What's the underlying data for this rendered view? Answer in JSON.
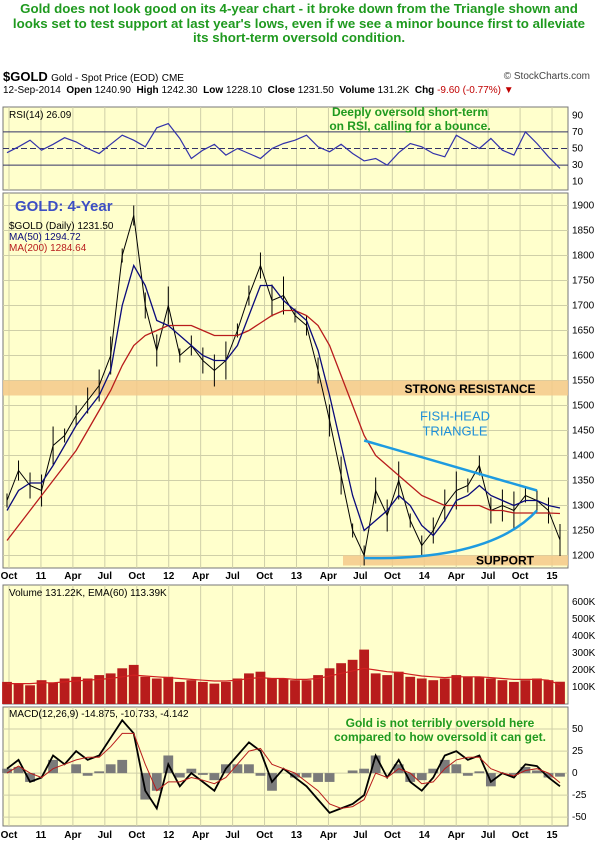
{
  "headline": "Gold does not look good on its 4-year chart - it broke down from the Triangle shown and looks set to test support at last year's lows, even if we see a minor bounce first to alleviate its short-term oversold condition.",
  "header": {
    "symbol": "$GOLD",
    "name": "Gold - Spot Price (EOD)",
    "exchange": "CME",
    "credit": "© StockCharts.com",
    "date": "12-Sep-2014",
    "open_label": "Open",
    "open": "1240.90",
    "high_label": "High",
    "high": "1242.30",
    "low_label": "Low",
    "low": "1228.10",
    "close_label": "Close",
    "close": "1231.50",
    "volume_label": "Volume",
    "volume": "131.2K",
    "chg_label": "Chg",
    "chg": "-9.60 (-0.77%)"
  },
  "colors": {
    "panel_bg": "#ffffcc",
    "grid": "#cfcfa8",
    "rsi_line": "#3333aa",
    "ma50": "#0a0a7a",
    "ma200": "#b81c1c",
    "price_bars": "#000000",
    "zone": "#f5c98a",
    "triangle": "#1e9be0",
    "headline": "#1f9a1f",
    "volume_bars": "#b81c1c",
    "macd_hist": "#7a7a7a"
  },
  "chart_data": [
    {
      "type": "line",
      "panel": "rsi",
      "legend": "RSI(14) 26.09",
      "yticks": [
        10,
        30,
        50,
        70,
        90
      ],
      "ylim": [
        0,
        100
      ],
      "reference_lines": [
        30,
        50,
        70
      ],
      "x": [
        0,
        1,
        2,
        3,
        4,
        5,
        6,
        7,
        8,
        9,
        10,
        11,
        12,
        13,
        14,
        15,
        16,
        17,
        18,
        19,
        20,
        21,
        22,
        23,
        24,
        25,
        26,
        27,
        28,
        29,
        30,
        31,
        32,
        33,
        34,
        35,
        36,
        37,
        38,
        39,
        40,
        41,
        42,
        43,
        44,
        45,
        46,
        47,
        48
      ],
      "values": [
        45,
        52,
        60,
        48,
        55,
        63,
        58,
        50,
        44,
        55,
        66,
        60,
        52,
        75,
        80,
        62,
        38,
        48,
        55,
        42,
        50,
        44,
        38,
        50,
        56,
        60,
        66,
        52,
        46,
        55,
        44,
        35,
        38,
        30,
        45,
        56,
        52,
        44,
        40,
        66,
        58,
        50,
        62,
        48,
        42,
        70,
        56,
        40,
        26
      ]
    },
    {
      "type": "line",
      "panel": "price",
      "title": "GOLD: 4-Year",
      "legend": [
        "$GOLD (Daily) 1231.50",
        "MA(50) 1294.72",
        "MA(200) 1284.64"
      ],
      "yticks": [
        1200,
        1250,
        1300,
        1350,
        1400,
        1450,
        1500,
        1550,
        1600,
        1650,
        1700,
        1750,
        1800,
        1850,
        1900
      ],
      "ylim": [
        1175,
        1925
      ],
      "x_ticks": [
        "Oct",
        "11",
        "Apr",
        "Jul",
        "Oct",
        "12",
        "Apr",
        "Jul",
        "Oct",
        "13",
        "Apr",
        "Jul",
        "Oct",
        "14",
        "Apr",
        "Jul",
        "Oct",
        "15"
      ],
      "x": [
        0,
        1,
        2,
        3,
        4,
        5,
        6,
        7,
        8,
        9,
        10,
        11,
        12,
        13,
        14,
        15,
        16,
        17,
        18,
        19,
        20,
        21,
        22,
        23,
        24,
        25,
        26,
        27,
        28,
        29,
        30,
        31,
        32,
        33,
        34,
        35,
        36,
        37,
        38,
        39,
        40,
        41,
        42,
        43,
        44,
        45,
        46,
        47,
        48
      ],
      "series": [
        {
          "name": "$GOLD",
          "values": [
            1310,
            1370,
            1340,
            1330,
            1420,
            1440,
            1480,
            1510,
            1540,
            1600,
            1800,
            1880,
            1700,
            1610,
            1700,
            1600,
            1620,
            1590,
            1570,
            1590,
            1650,
            1720,
            1780,
            1710,
            1720,
            1680,
            1660,
            1570,
            1470,
            1360,
            1250,
            1200,
            1330,
            1280,
            1350,
            1270,
            1220,
            1250,
            1300,
            1330,
            1340,
            1380,
            1290,
            1300,
            1290,
            1320,
            1310,
            1290,
            1231
          ]
        },
        {
          "name": "MA(50)",
          "values": [
            1290,
            1330,
            1345,
            1345,
            1380,
            1420,
            1460,
            1490,
            1520,
            1570,
            1700,
            1780,
            1740,
            1670,
            1660,
            1640,
            1620,
            1600,
            1590,
            1590,
            1620,
            1680,
            1740,
            1740,
            1710,
            1690,
            1670,
            1610,
            1520,
            1420,
            1320,
            1250,
            1270,
            1290,
            1320,
            1300,
            1260,
            1240,
            1270,
            1310,
            1320,
            1340,
            1320,
            1310,
            1300,
            1310,
            1310,
            1300,
            1295
          ]
        },
        {
          "name": "MA(200)",
          "values": [
            1230,
            1260,
            1290,
            1320,
            1350,
            1380,
            1410,
            1450,
            1490,
            1530,
            1580,
            1620,
            1640,
            1650,
            1660,
            1660,
            1660,
            1650,
            1640,
            1640,
            1640,
            1650,
            1665,
            1680,
            1690,
            1690,
            1680,
            1660,
            1620,
            1560,
            1500,
            1440,
            1400,
            1380,
            1360,
            1340,
            1320,
            1310,
            1300,
            1300,
            1300,
            1300,
            1290,
            1290,
            1285,
            1285,
            1285,
            1285,
            1284
          ]
        }
      ],
      "annotations": [
        "STRONG RESISTANCE",
        "FISH-HEAD",
        "TRIANGLE",
        "SUPPORT"
      ],
      "resistance_zone": [
        1520,
        1550
      ],
      "support_zone": [
        1180,
        1200
      ]
    },
    {
      "type": "bar",
      "panel": "volume",
      "legend": "Volume 131.22K, EMA(60) 113.39K",
      "yticks": [
        "100K",
        "200K",
        "300K",
        "400K",
        "500K",
        "600K"
      ],
      "ylim": [
        0,
        700
      ],
      "x": [
        0,
        1,
        2,
        3,
        4,
        5,
        6,
        7,
        8,
        9,
        10,
        11,
        12,
        13,
        14,
        15,
        16,
        17,
        18,
        19,
        20,
        21,
        22,
        23,
        24,
        25,
        26,
        27,
        28,
        29,
        30,
        31,
        32,
        33,
        34,
        35,
        36,
        37,
        38,
        39,
        40,
        41,
        42,
        43,
        44,
        45,
        46,
        47,
        48
      ],
      "values": [
        130,
        120,
        110,
        140,
        125,
        150,
        160,
        150,
        170,
        180,
        210,
        230,
        160,
        150,
        160,
        130,
        140,
        130,
        120,
        130,
        150,
        180,
        190,
        150,
        150,
        140,
        140,
        170,
        210,
        240,
        260,
        320,
        180,
        170,
        190,
        160,
        150,
        140,
        150,
        170,
        160,
        160,
        150,
        140,
        130,
        140,
        150,
        140,
        131
      ],
      "ema_values": [
        120,
        120,
        120,
        125,
        125,
        130,
        135,
        140,
        145,
        150,
        160,
        170,
        165,
        160,
        155,
        150,
        145,
        140,
        135,
        135,
        140,
        150,
        155,
        150,
        150,
        145,
        145,
        150,
        165,
        180,
        195,
        210,
        200,
        190,
        185,
        175,
        165,
        160,
        155,
        160,
        160,
        160,
        155,
        150,
        145,
        145,
        145,
        140,
        113
      ]
    },
    {
      "type": "line",
      "panel": "macd",
      "legend": "MACD(12,26,9) -14.875, -10.733, -4.142",
      "yticks": [
        -50,
        -25,
        0,
        25,
        50
      ],
      "ylim": [
        -60,
        75
      ],
      "x": [
        0,
        1,
        2,
        3,
        4,
        5,
        6,
        7,
        8,
        9,
        10,
        11,
        12,
        13,
        14,
        15,
        16,
        17,
        18,
        19,
        20,
        21,
        22,
        23,
        24,
        25,
        26,
        27,
        28,
        29,
        30,
        31,
        32,
        33,
        34,
        35,
        36,
        37,
        38,
        39,
        40,
        41,
        42,
        43,
        44,
        45,
        46,
        47,
        48
      ],
      "series": [
        {
          "name": "MACD",
          "values": [
            5,
            15,
            -10,
            -5,
            20,
            10,
            25,
            15,
            20,
            40,
            60,
            45,
            -20,
            -40,
            10,
            -15,
            0,
            -10,
            -20,
            5,
            20,
            35,
            25,
            -10,
            5,
            -5,
            -15,
            -30,
            -45,
            -40,
            -35,
            -25,
            20,
            -5,
            15,
            -10,
            -20,
            -5,
            20,
            25,
            15,
            20,
            -10,
            0,
            -5,
            10,
            8,
            -5,
            -15
          ]
        },
        {
          "name": "Signal",
          "values": [
            0,
            8,
            0,
            -5,
            5,
            10,
            15,
            18,
            18,
            30,
            45,
            45,
            10,
            -20,
            -10,
            -10,
            -5,
            -8,
            -12,
            -5,
            10,
            25,
            28,
            10,
            5,
            0,
            -10,
            -20,
            -35,
            -40,
            -38,
            -30,
            0,
            -5,
            5,
            0,
            -12,
            -10,
            5,
            15,
            18,
            18,
            5,
            0,
            -3,
            3,
            5,
            0,
            -11
          ]
        }
      ],
      "annotations": [
        "Gold is not terribly oversold here",
        "compared to how oversold it can get."
      ]
    }
  ]
}
